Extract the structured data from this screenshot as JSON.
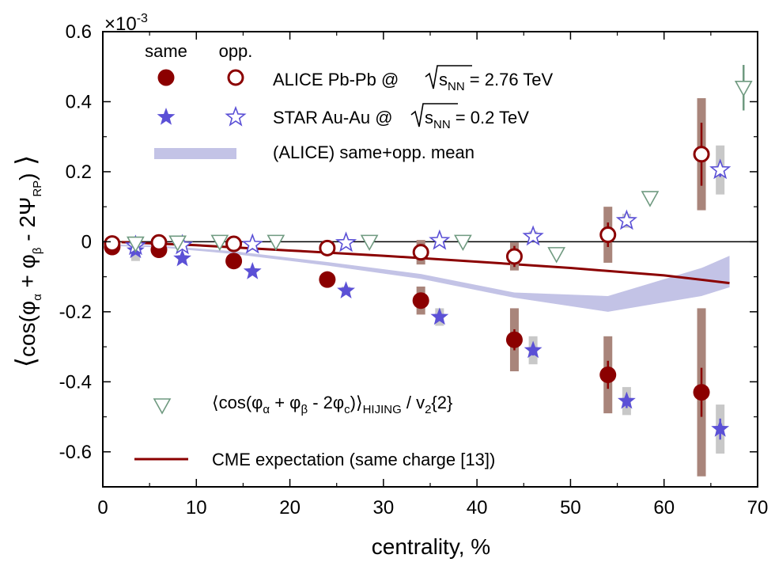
{
  "chart_data": {
    "type": "scatter",
    "title": "",
    "xlabel": "centrality, %",
    "ylabel_parts": {
      "main": "cos(φ",
      "a": "α",
      "plus": " + φ",
      "b": "β",
      "minus": " - 2Ψ",
      "rp": "RP",
      "close": ")"
    },
    "y_multiplier": "×10",
    "y_multiplier_exp": "-3",
    "xlim": [
      0,
      70
    ],
    "ylim": [
      -0.7,
      0.6
    ],
    "x_ticks": [
      0,
      10,
      20,
      30,
      40,
      50,
      60,
      70
    ],
    "x_tick_labels": [
      "0",
      "10",
      "20",
      "30",
      "40",
      "50",
      "60",
      "70"
    ],
    "y_ticks": [
      -0.6,
      -0.4,
      -0.2,
      0,
      0.2,
      0.4,
      0.6
    ],
    "y_tick_labels": [
      "-0.6",
      "-0.4",
      "-0.2",
      "0",
      "0.2",
      "0.4",
      "0.6"
    ],
    "legend_header": {
      "same": "same",
      "opp": "opp."
    },
    "legend": {
      "alice": {
        "pre": "ALICE Pb-Pb  @",
        "s": "s",
        "sub": "NN",
        "post": " = 2.76 TeV"
      },
      "star": {
        "pre": "STAR Au-Au  @",
        "s": "s",
        "sub": "NN",
        "post": " = 0.2 TeV"
      },
      "band": "(ALICE) same+opp. mean",
      "hijing": {
        "pre": "⟨cos(φ",
        "a": "α",
        "plus": " + φ",
        "b": "β",
        "minus": " - 2φ",
        "c": "c",
        "close": ")⟩",
        "sub": "HIJING",
        "post": " / v",
        "two": "2",
        "tail": "{2}"
      },
      "cme": "CME expectation (same charge [13])"
    },
    "colors": {
      "alice": "#8b0000",
      "alice_sys": "#a9857b",
      "star": "#5b50d6",
      "star_sys": "#c8c8c8",
      "band": "#c3c3e6",
      "hijing": "#6f9a80",
      "cme": "#8b0000"
    },
    "series": [
      {
        "name": "ALICE same",
        "marker": "filled-circle",
        "x": [
          1,
          6,
          14,
          24,
          34,
          44,
          54,
          64
        ],
        "y": [
          -0.015,
          -0.023,
          -0.055,
          -0.108,
          -0.168,
          -0.28,
          -0.38,
          -0.43
        ],
        "err": [
          0.005,
          0.006,
          0.008,
          0.012,
          0.018,
          0.03,
          0.04,
          0.07
        ],
        "sys": [
          0.012,
          0.015,
          0.012,
          0.015,
          0.04,
          0.09,
          0.11,
          0.24
        ]
      },
      {
        "name": "ALICE opp",
        "marker": "open-circle",
        "x": [
          1,
          6,
          14,
          24,
          34,
          44,
          54,
          64
        ],
        "y": [
          -0.005,
          -0.002,
          -0.006,
          -0.018,
          -0.03,
          -0.042,
          0.02,
          0.25
        ],
        "err": [
          0.005,
          0.006,
          0.008,
          0.012,
          0.018,
          0.03,
          0.035,
          0.09
        ],
        "sys": [
          0.01,
          0.012,
          0.01,
          0.012,
          0.035,
          0.04,
          0.08,
          0.16
        ]
      },
      {
        "name": "STAR same",
        "marker": "filled-star",
        "x": [
          3.5,
          8.5,
          16,
          26,
          36,
          46,
          56,
          66
        ],
        "y": [
          -0.025,
          -0.048,
          -0.085,
          -0.14,
          -0.215,
          -0.31,
          -0.455,
          -0.535
        ],
        "err": [
          0.004,
          0.005,
          0.006,
          0.008,
          0.01,
          0.015,
          0.02,
          0.03
        ],
        "sys": [
          0.03,
          0.01,
          0.01,
          0.012,
          0.025,
          0.04,
          0.04,
          0.07
        ]
      },
      {
        "name": "STAR opp",
        "marker": "open-star",
        "x": [
          3.5,
          8.5,
          16,
          26,
          36,
          46,
          56,
          66
        ],
        "y": [
          -0.012,
          -0.01,
          -0.008,
          -0.003,
          0.003,
          0.015,
          0.06,
          0.205
        ],
        "err": [
          0.004,
          0.005,
          0.006,
          0.008,
          0.01,
          0.012,
          0.015,
          0.02
        ],
        "sys": [
          0.01,
          0.01,
          0.01,
          0.01,
          0.01,
          0.015,
          0.02,
          0.07
        ]
      },
      {
        "name": "HIJING",
        "marker": "open-triangle-down",
        "x": [
          3.5,
          8,
          12.5,
          18.5,
          28.5,
          38.5,
          48.5,
          58.5,
          68.5
        ],
        "y": [
          -0.005,
          -0.002,
          0.0,
          0.0,
          0.0,
          0.0,
          -0.035,
          0.125,
          0.44
        ],
        "err": [
          0,
          0,
          0,
          0,
          0,
          0,
          0,
          0,
          0.065
        ]
      }
    ],
    "band": {
      "name": "(ALICE) same+opp. mean",
      "x": [
        1,
        6,
        14,
        24,
        34,
        44,
        54,
        64,
        67
      ],
      "upper": [
        -0.008,
        -0.011,
        -0.027,
        -0.058,
        -0.092,
        -0.145,
        -0.155,
        -0.075,
        -0.04
      ],
      "lower": [
        -0.012,
        -0.016,
        -0.035,
        -0.068,
        -0.106,
        -0.16,
        -0.2,
        -0.155,
        -0.13
      ]
    },
    "cme_line": {
      "x": [
        2,
        10,
        20,
        30,
        40,
        50,
        60,
        67
      ],
      "y": [
        -0.001,
        -0.01,
        -0.025,
        -0.04,
        -0.057,
        -0.075,
        -0.096,
        -0.118
      ]
    }
  }
}
